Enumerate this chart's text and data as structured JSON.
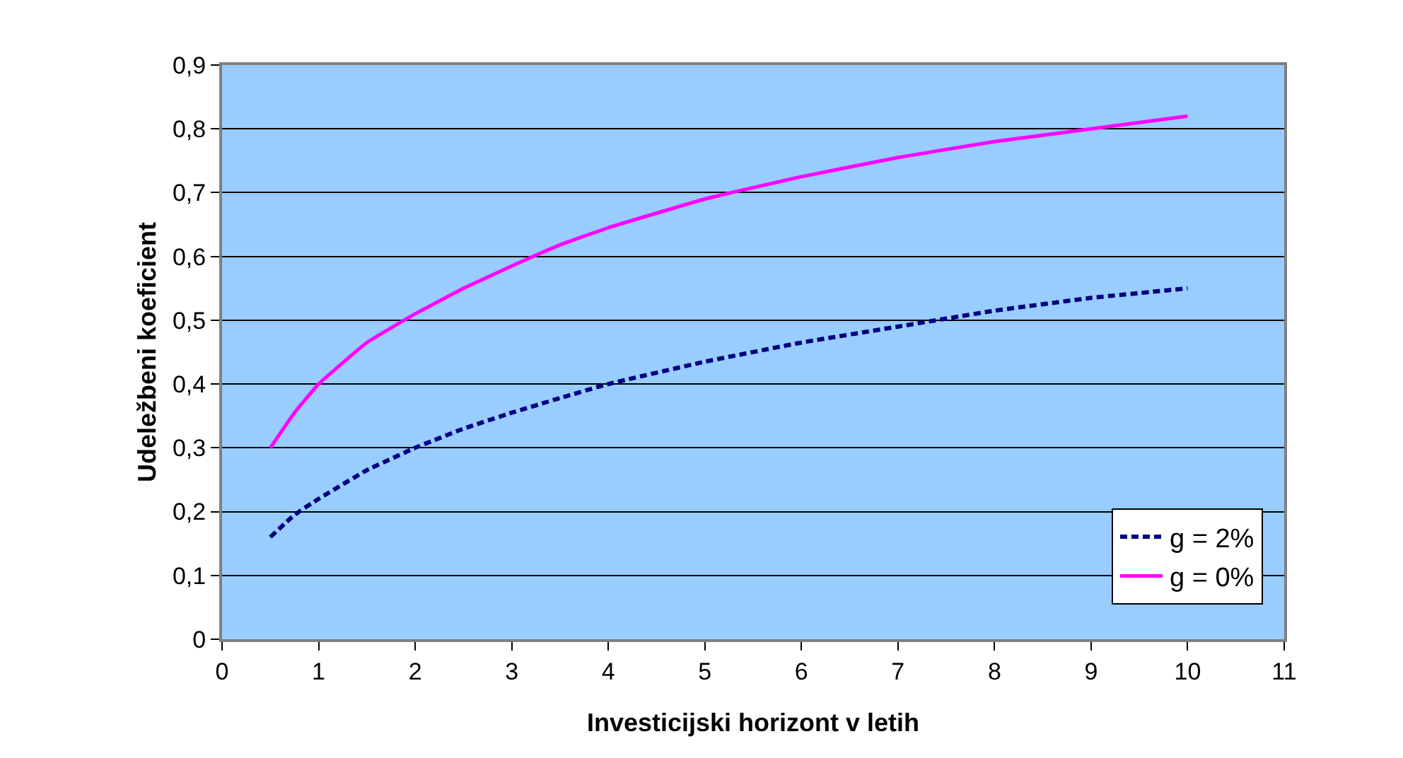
{
  "chart_data": {
    "type": "line",
    "xlabel": "Investicijski horizont v letih",
    "ylabel": "Udeležbeni koeficient",
    "x": [
      0.5,
      0.75,
      1,
      1.5,
      2,
      2.5,
      3,
      3.5,
      4,
      5,
      6,
      7,
      8,
      9,
      10
    ],
    "series": [
      {
        "name": "g = 2%",
        "color": "#000080",
        "line_style": "dashed",
        "values": [
          0.16,
          0.195,
          0.22,
          0.265,
          0.3,
          0.33,
          0.355,
          0.378,
          0.4,
          0.435,
          0.465,
          0.49,
          0.515,
          0.535,
          0.55
        ]
      },
      {
        "name": "g = 0%",
        "color": "#ff00ff",
        "line_style": "solid",
        "values": [
          0.3,
          0.355,
          0.4,
          0.465,
          0.51,
          0.55,
          0.585,
          0.618,
          0.645,
          0.69,
          0.725,
          0.755,
          0.78,
          0.8,
          0.82
        ]
      }
    ],
    "xlim": [
      0,
      11
    ],
    "xticks": [
      0,
      1,
      2,
      3,
      4,
      5,
      6,
      7,
      8,
      9,
      10,
      11
    ],
    "ylim": [
      0,
      0.9
    ],
    "yticks": [
      0,
      {
        "value": 0.1,
        "label": "0,1"
      },
      {
        "value": 0.2,
        "label": "0,2"
      },
      {
        "value": 0.3,
        "label": "0,3"
      },
      {
        "value": 0.4,
        "label": "0,4"
      },
      {
        "value": 0.5,
        "label": "0,5"
      },
      {
        "value": 0.6,
        "label": "0,6"
      },
      {
        "value": 0.7,
        "label": "0,7"
      },
      {
        "value": 0.8,
        "label": "0,8"
      },
      {
        "value": 0.9,
        "label": "0,9"
      }
    ],
    "grid": "y",
    "legend": "bottom right",
    "marker": "none"
  }
}
